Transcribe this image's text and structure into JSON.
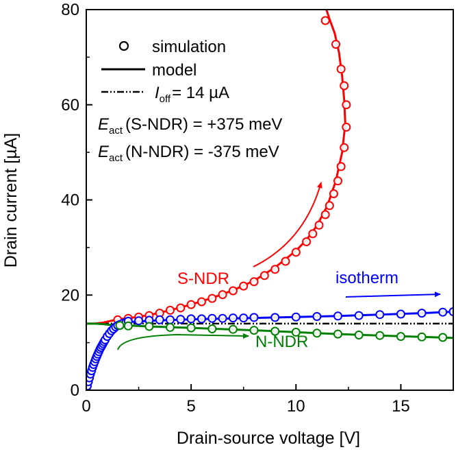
{
  "chart_data": {
    "type": "line",
    "xlabel": "Drain-source voltage [V]",
    "ylabel": "Drain current [µA]",
    "xlim": [
      0,
      17.5
    ],
    "ylim": [
      0,
      80
    ],
    "x_ticks": [
      0,
      5,
      10,
      15
    ],
    "y_ticks": [
      0,
      20,
      40,
      60,
      80
    ],
    "legend": {
      "placement": "top-left",
      "simulation": "simulation",
      "model": "model",
      "ioff_symbol": "I",
      "ioff_sub": "off",
      "ioff_value": "= 14 µA"
    },
    "annotations": {
      "eact_symbol": "E",
      "eact_sub": "act",
      "eact_s": "(S-NDR) = +375 meV",
      "eact_n": "(N-NDR) = -375 meV",
      "label_sndr": "S-NDR",
      "label_isotherm": "isotherm",
      "label_nndr": "N-NDR"
    },
    "ioff": 14,
    "colors": {
      "sndr": "#ff0000",
      "isotherm": "#0000ff",
      "nndr": "#008000",
      "ioff": "#000000"
    },
    "series": [
      {
        "name": "S-NDR",
        "color": "#ff0000",
        "model": [
          [
            0,
            14
          ],
          [
            0.4,
            14
          ],
          [
            0.8,
            14.2
          ],
          [
            1.5,
            14.9
          ],
          [
            2,
            15.1
          ],
          [
            3,
            15.8
          ],
          [
            4,
            16.8
          ],
          [
            5,
            18
          ],
          [
            6,
            19.4
          ],
          [
            7,
            21
          ],
          [
            8,
            23
          ],
          [
            9,
            25.8
          ],
          [
            10,
            29.3
          ],
          [
            10.5,
            31.6
          ],
          [
            11,
            34.6
          ],
          [
            11.5,
            38.8
          ],
          [
            11.9,
            44
          ],
          [
            12.2,
            50
          ],
          [
            12.35,
            56
          ],
          [
            12.3,
            61
          ],
          [
            12.2,
            66
          ],
          [
            12.05,
            71
          ],
          [
            11.85,
            75
          ],
          [
            11.6,
            78
          ],
          [
            11.45,
            80
          ]
        ],
        "simulation": [
          [
            1.5,
            14.8
          ],
          [
            2,
            15.1
          ],
          [
            2.5,
            15.4
          ],
          [
            3,
            15.7
          ],
          [
            3.5,
            16.2
          ],
          [
            4,
            16.8
          ],
          [
            4.5,
            17.3
          ],
          [
            5,
            18
          ],
          [
            5.5,
            18.6
          ],
          [
            6,
            19.3
          ],
          [
            6.5,
            20.1
          ],
          [
            7,
            20.9
          ],
          [
            7.5,
            21.9
          ],
          [
            8,
            22.8
          ],
          [
            8.5,
            24.1
          ],
          [
            9,
            25.4
          ],
          [
            9.5,
            27.1
          ],
          [
            10,
            29
          ],
          [
            10.5,
            31.2
          ],
          [
            10.8,
            32.9
          ],
          [
            11.1,
            34.7
          ],
          [
            11.4,
            36.9
          ],
          [
            11.6,
            38.8
          ],
          [
            11.8,
            41.3
          ],
          [
            12,
            44
          ],
          [
            12.15,
            47
          ],
          [
            12.3,
            51
          ],
          [
            12.4,
            55.3
          ],
          [
            12.4,
            60
          ],
          [
            12.3,
            64
          ],
          [
            12.15,
            67.5
          ],
          [
            11.9,
            72.7
          ],
          [
            11.4,
            77.7
          ]
        ]
      },
      {
        "name": "isotherm",
        "color": "#0000ff",
        "model": [
          [
            0,
            0
          ],
          [
            0.1,
            1.8
          ],
          [
            0.2,
            3.5
          ],
          [
            0.35,
            5.5
          ],
          [
            0.5,
            7.3
          ],
          [
            0.7,
            9.3
          ],
          [
            0.9,
            10.9
          ],
          [
            1.1,
            12.1
          ],
          [
            1.3,
            13
          ],
          [
            1.6,
            13.8
          ],
          [
            2,
            14.3
          ],
          [
            3,
            14.6
          ],
          [
            5,
            14.9
          ],
          [
            8,
            15.2
          ],
          [
            10,
            15.4
          ],
          [
            12,
            15.6
          ],
          [
            14,
            15.9
          ],
          [
            16,
            16.2
          ],
          [
            17.5,
            16.5
          ]
        ],
        "simulation": [
          [
            0,
            0
          ],
          [
            0.05,
            0.9
          ],
          [
            0.1,
            1.8
          ],
          [
            0.15,
            2.6
          ],
          [
            0.2,
            3.4
          ],
          [
            0.25,
            4.1
          ],
          [
            0.3,
            4.8
          ],
          [
            0.35,
            5.4
          ],
          [
            0.4,
            6
          ],
          [
            0.45,
            6.6
          ],
          [
            0.5,
            7.1
          ],
          [
            0.55,
            7.6
          ],
          [
            0.6,
            8.1
          ],
          [
            0.65,
            8.6
          ],
          [
            0.7,
            9
          ],
          [
            0.75,
            9.4
          ],
          [
            0.8,
            9.8
          ],
          [
            0.85,
            10.2
          ],
          [
            0.9,
            10.6
          ],
          [
            1,
            11.3
          ],
          [
            1.1,
            11.9
          ],
          [
            1.2,
            12.5
          ],
          [
            1.3,
            12.9
          ],
          [
            1.4,
            13.3
          ],
          [
            1.5,
            13.6
          ],
          [
            1.6,
            13.8
          ],
          [
            1.75,
            14.1
          ],
          [
            1.9,
            14.3
          ],
          [
            2,
            14.5
          ],
          [
            2.5,
            14.6
          ],
          [
            3,
            14.7
          ],
          [
            3.5,
            14.8
          ],
          [
            4,
            14.8
          ],
          [
            4.5,
            14.9
          ],
          [
            5,
            15
          ],
          [
            5.5,
            15
          ],
          [
            6,
            15.1
          ],
          [
            6.5,
            15.1
          ],
          [
            7,
            15.2
          ],
          [
            7.5,
            15.2
          ],
          [
            8,
            15.3
          ],
          [
            9,
            15.3
          ],
          [
            10,
            15.4
          ],
          [
            11,
            15.5
          ],
          [
            12,
            15.6
          ],
          [
            13,
            15.7
          ],
          [
            14,
            15.9
          ],
          [
            15,
            16
          ],
          [
            16,
            16.2
          ],
          [
            17,
            16.4
          ],
          [
            17.5,
            16.5
          ]
        ]
      },
      {
        "name": "N-NDR",
        "color": "#008000",
        "model": [
          [
            0,
            14
          ],
          [
            0.4,
            14
          ],
          [
            0.8,
            13.9
          ],
          [
            1.2,
            13.7
          ],
          [
            1.6,
            13.6
          ],
          [
            2,
            13.6
          ],
          [
            3,
            13.4
          ],
          [
            5,
            13.1
          ],
          [
            8,
            12.6
          ],
          [
            10,
            12.2
          ],
          [
            12,
            11.8
          ],
          [
            14,
            11.5
          ],
          [
            16,
            11.2
          ],
          [
            17.5,
            11
          ]
        ],
        "simulation": [
          [
            1.6,
            13.6
          ],
          [
            2,
            13.5
          ],
          [
            3,
            13.4
          ],
          [
            4,
            13.2
          ],
          [
            5,
            13.1
          ],
          [
            6,
            12.9
          ],
          [
            7,
            12.8
          ],
          [
            8,
            12.6
          ],
          [
            9,
            12.4
          ],
          [
            10,
            12.2
          ],
          [
            11,
            12
          ],
          [
            12,
            11.8
          ],
          [
            13,
            11.6
          ],
          [
            14,
            11.5
          ],
          [
            15,
            11.3
          ],
          [
            16,
            11.2
          ],
          [
            17,
            11.1
          ]
        ]
      }
    ]
  }
}
